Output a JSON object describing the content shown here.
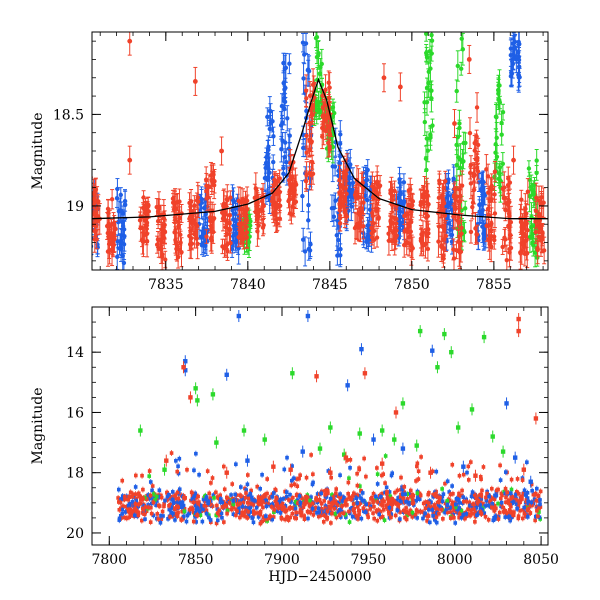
{
  "chart_data": [
    {
      "panel": "top",
      "type": "scatter",
      "title": "",
      "xlabel": "",
      "ylabel": "Magnitude",
      "xlim": [
        7830.5,
        7858.3
      ],
      "ylim": [
        19.35,
        18.05
      ],
      "y_inverted": true,
      "x_ticks": [
        7835,
        7840,
        7845,
        7850,
        7855
      ],
      "y_ticks": [
        18.5,
        19
      ],
      "grid": false,
      "legend": "none",
      "model_curve": {
        "color": "#000000",
        "x": [
          7830.5,
          7834,
          7838,
          7840,
          7841.5,
          7842.5,
          7843.3,
          7843.9,
          7844.3,
          7844.8,
          7845.5,
          7846.5,
          7848,
          7850,
          7853,
          7856,
          7858.3
        ],
        "y": [
          19.07,
          19.06,
          19.03,
          18.99,
          18.93,
          18.82,
          18.6,
          18.42,
          18.31,
          18.42,
          18.68,
          18.85,
          18.96,
          19.02,
          19.05,
          19.07,
          19.07
        ]
      },
      "series": [
        {
          "color": "#1f5fe6",
          "dense_groups": [
            {
              "x": 7830.6,
              "y_min": 18.9,
              "y_max": 19.25
            },
            {
              "x": 7832.3,
              "y_min": 18.9,
              "y_max": 19.32
            },
            {
              "x": 7837.3,
              "y_min": 18.95,
              "y_max": 19.25
            },
            {
              "x": 7839.3,
              "y_min": 18.95,
              "y_max": 19.25
            },
            {
              "x": 7841.3,
              "y_min": 18.45,
              "y_max": 19.0
            },
            {
              "x": 7842.3,
              "y_min": 18.2,
              "y_max": 18.85
            },
            {
              "x": 7843.6,
              "y_min": 18.05,
              "y_max": 19.3
            },
            {
              "x": 7845.4,
              "y_min": 18.6,
              "y_max": 19.3
            },
            {
              "x": 7846.2,
              "y_min": 18.75,
              "y_max": 19.1
            },
            {
              "x": 7847.3,
              "y_min": 18.8,
              "y_max": 19.25
            },
            {
              "x": 7849.3,
              "y_min": 18.85,
              "y_max": 19.2
            },
            {
              "x": 7852.3,
              "y_min": 18.85,
              "y_max": 19.2
            },
            {
              "x": 7854.3,
              "y_min": 18.85,
              "y_max": 19.2
            },
            {
              "x": 7856.3,
              "y_min": 18.1,
              "y_max": 18.3
            }
          ]
        },
        {
          "color": "#2bd92b",
          "dense_groups": [
            {
              "x": 7839.9,
              "y_min": 19.05,
              "y_max": 19.2
            },
            {
              "x": 7844.3,
              "y_min": 18.05,
              "y_max": 18.5
            },
            {
              "x": 7845.0,
              "y_min": 18.45,
              "y_max": 18.7
            },
            {
              "x": 7851.0,
              "y_min": 18.05,
              "y_max": 18.9
            },
            {
              "x": 7853.0,
              "y_min": 18.05,
              "y_max": 19.2
            },
            {
              "x": 7855.3,
              "y_min": 18.3,
              "y_max": 18.9
            },
            {
              "x": 7857.4,
              "y_min": 18.75,
              "y_max": 19.35
            }
          ]
        },
        {
          "color": "#f0422a",
          "isolated_points": [
            {
              "x": 7832.8,
              "y": 18.75
            },
            {
              "x": 7832.8,
              "y": 18.1
            },
            {
              "x": 7836.8,
              "y": 18.32
            },
            {
              "x": 7838.4,
              "y": 18.7
            },
            {
              "x": 7848.3,
              "y": 18.3
            },
            {
              "x": 7849.3,
              "y": 18.35
            },
            {
              "x": 7852.6,
              "y": 18.55
            },
            {
              "x": 7853.5,
              "y": 18.2
            },
            {
              "x": 7856.2,
              "y": 18.75
            }
          ],
          "dense_groups": [
            {
              "x": 7830.7,
              "y_min": 18.9,
              "y_max": 19.2
            },
            {
              "x": 7831.7,
              "y_min": 18.95,
              "y_max": 19.25
            },
            {
              "x": 7833.7,
              "y_min": 18.95,
              "y_max": 19.2
            },
            {
              "x": 7834.7,
              "y_min": 19.0,
              "y_max": 19.3
            },
            {
              "x": 7835.7,
              "y_min": 18.95,
              "y_max": 19.3
            },
            {
              "x": 7836.7,
              "y_min": 18.95,
              "y_max": 19.25
            },
            {
              "x": 7837.7,
              "y_min": 18.8,
              "y_max": 19.2
            },
            {
              "x": 7838.7,
              "y_min": 18.95,
              "y_max": 19.25
            },
            {
              "x": 7839.7,
              "y_min": 18.95,
              "y_max": 19.2
            },
            {
              "x": 7840.7,
              "y_min": 18.9,
              "y_max": 19.15
            },
            {
              "x": 7841.7,
              "y_min": 18.85,
              "y_max": 19.1
            },
            {
              "x": 7842.7,
              "y_min": 18.75,
              "y_max": 19.05
            },
            {
              "x": 7843.8,
              "y_min": 18.25,
              "y_max": 18.95
            },
            {
              "x": 7844.8,
              "y_min": 18.3,
              "y_max": 18.7
            },
            {
              "x": 7845.8,
              "y_min": 18.8,
              "y_max": 19.1
            },
            {
              "x": 7846.8,
              "y_min": 18.85,
              "y_max": 19.15
            },
            {
              "x": 7847.8,
              "y_min": 18.85,
              "y_max": 19.2
            },
            {
              "x": 7848.8,
              "y_min": 18.9,
              "y_max": 19.2
            },
            {
              "x": 7849.8,
              "y_min": 18.9,
              "y_max": 19.25
            },
            {
              "x": 7850.8,
              "y_min": 18.9,
              "y_max": 19.25
            },
            {
              "x": 7851.8,
              "y_min": 18.85,
              "y_max": 19.3
            },
            {
              "x": 7852.8,
              "y_min": 18.85,
              "y_max": 19.3
            },
            {
              "x": 7853.8,
              "y_min": 18.45,
              "y_max": 19.2
            },
            {
              "x": 7854.8,
              "y_min": 18.8,
              "y_max": 19.25
            },
            {
              "x": 7855.8,
              "y_min": 18.85,
              "y_max": 19.3
            },
            {
              "x": 7856.8,
              "y_min": 18.9,
              "y_max": 19.3
            },
            {
              "x": 7857.8,
              "y_min": 18.95,
              "y_max": 19.25
            }
          ]
        }
      ]
    },
    {
      "panel": "bottom",
      "type": "scatter",
      "title": "",
      "xlabel": "HJD−2450000",
      "ylabel": "Magnitude",
      "xlim": [
        7790,
        8054
      ],
      "ylim": [
        20.4,
        12.5
      ],
      "y_inverted": true,
      "x_ticks": [
        7800,
        7850,
        7900,
        7950,
        8000,
        8050
      ],
      "y_ticks": [
        14,
        16,
        18,
        20
      ],
      "grid": false,
      "legend": "none",
      "baseline_band": {
        "x_start": 7805,
        "x_end": 8050,
        "y_center": 19.1,
        "y_spread": 0.5
      },
      "series": [
        {
          "color": "#1f5fe6",
          "outliers": [
            {
              "x": 7844,
              "y": 14.3
            },
            {
              "x": 7844,
              "y": 14.6
            },
            {
              "x": 7868,
              "y": 14.75
            },
            {
              "x": 7875,
              "y": 12.8
            },
            {
              "x": 7915,
              "y": 12.8
            },
            {
              "x": 7938,
              "y": 15.1
            },
            {
              "x": 7946,
              "y": 13.9
            },
            {
              "x": 7953,
              "y": 16.9
            },
            {
              "x": 7987,
              "y": 13.95
            },
            {
              "x": 8030,
              "y": 15.7
            },
            {
              "x": 8035,
              "y": 17.5
            },
            {
              "x": 8044,
              "y": 18.3
            },
            {
              "x": 7880,
              "y": 17.6
            },
            {
              "x": 7912,
              "y": 17.3
            },
            {
              "x": 7970,
              "y": 17.2
            },
            {
              "x": 8005,
              "y": 17.8
            }
          ]
        },
        {
          "color": "#2bd92b",
          "outliers": [
            {
              "x": 7850,
              "y": 15.2
            },
            {
              "x": 7851,
              "y": 15.6
            },
            {
              "x": 7860,
              "y": 15.4
            },
            {
              "x": 7878,
              "y": 16.6
            },
            {
              "x": 7906,
              "y": 14.7
            },
            {
              "x": 7928,
              "y": 16.5
            },
            {
              "x": 7958,
              "y": 16.6
            },
            {
              "x": 7970,
              "y": 15.7
            },
            {
              "x": 7980,
              "y": 13.3
            },
            {
              "x": 7990,
              "y": 14.5
            },
            {
              "x": 7994,
              "y": 13.4
            },
            {
              "x": 7998,
              "y": 14.0
            },
            {
              "x": 8002,
              "y": 16.5
            },
            {
              "x": 8010,
              "y": 15.9
            },
            {
              "x": 8017,
              "y": 13.5
            },
            {
              "x": 7818,
              "y": 16.6
            },
            {
              "x": 7832,
              "y": 17.9
            },
            {
              "x": 7862,
              "y": 17.0
            },
            {
              "x": 7890,
              "y": 16.9
            },
            {
              "x": 7922,
              "y": 17.2
            },
            {
              "x": 7936,
              "y": 17.4
            },
            {
              "x": 7945,
              "y": 16.7
            },
            {
              "x": 7965,
              "y": 16.9
            },
            {
              "x": 7978,
              "y": 17.1
            },
            {
              "x": 8022,
              "y": 16.8
            },
            {
              "x": 8028,
              "y": 17.3
            }
          ]
        },
        {
          "color": "#f0422a",
          "outliers": [
            {
              "x": 7843,
              "y": 14.5
            },
            {
              "x": 7847,
              "y": 15.5
            },
            {
              "x": 7833,
              "y": 17.6
            },
            {
              "x": 7920,
              "y": 14.8
            },
            {
              "x": 7948,
              "y": 14.7
            },
            {
              "x": 7937,
              "y": 17.5
            },
            {
              "x": 7966,
              "y": 16.0
            },
            {
              "x": 7986,
              "y": 18.0
            },
            {
              "x": 8037,
              "y": 12.9
            },
            {
              "x": 8037,
              "y": 13.3
            },
            {
              "x": 8047,
              "y": 16.2
            },
            {
              "x": 7868,
              "y": 18.0
            },
            {
              "x": 7895,
              "y": 17.8
            },
            {
              "x": 7905,
              "y": 17.9
            },
            {
              "x": 7928,
              "y": 18.0
            },
            {
              "x": 7958,
              "y": 17.7
            },
            {
              "x": 8012,
              "y": 18.1
            },
            {
              "x": 8040,
              "y": 17.9
            }
          ]
        }
      ]
    }
  ]
}
